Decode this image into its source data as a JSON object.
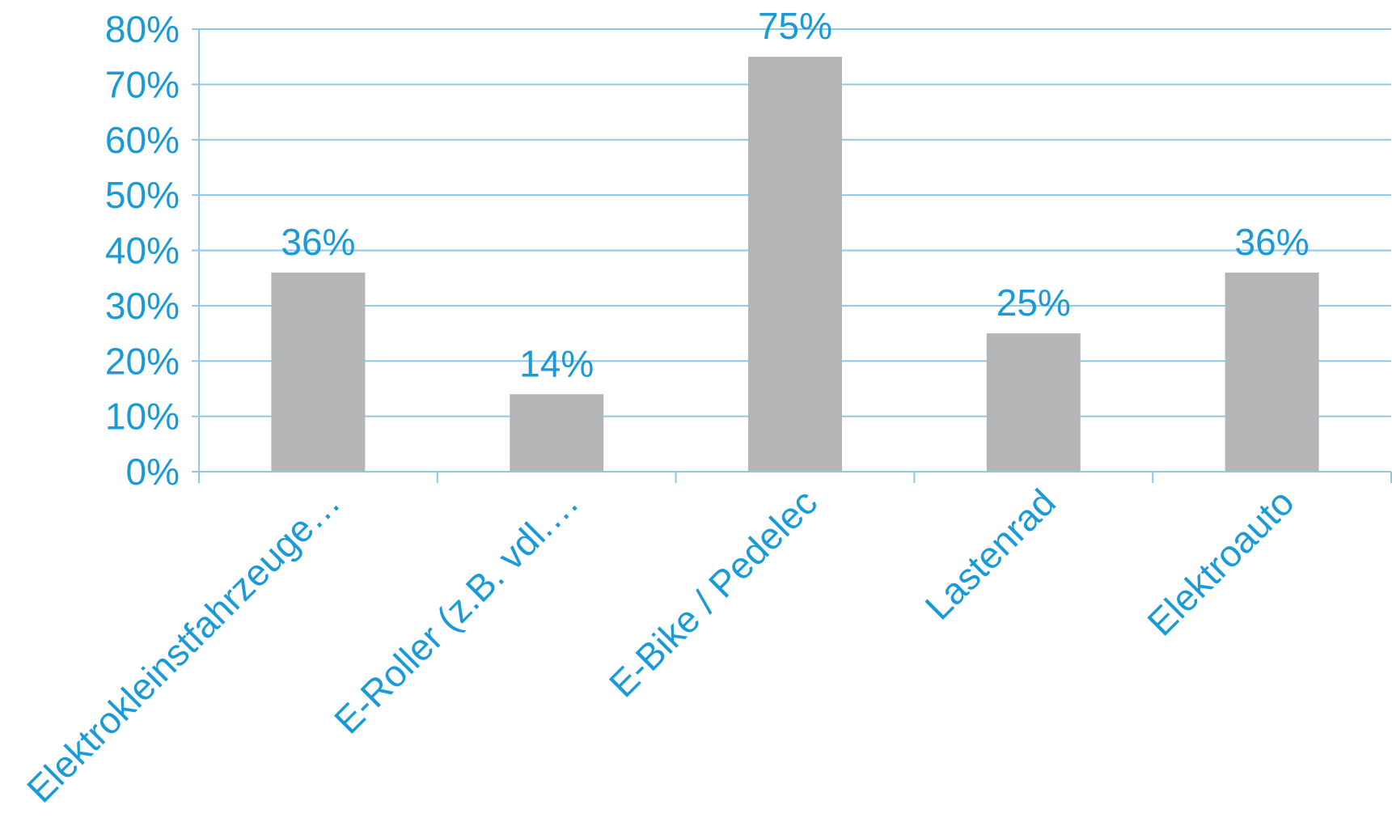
{
  "colors": {
    "text": "#1a9ad6",
    "bar": "#b4b5b7",
    "grid": "#8fc7e6",
    "axis": "#8fc7e6",
    "background": "#ffffff"
  },
  "chart_data": {
    "type": "bar",
    "categories": [
      "Elektrokleinstfahrzeuge…",
      "E-Roller (z.B. vdl.…",
      "E-Bike / Pedelec",
      "Lastenrad",
      "Elektroauto"
    ],
    "values": [
      36,
      14,
      75,
      25,
      36
    ],
    "value_labels": [
      "36%",
      "14%",
      "75%",
      "25%",
      "36%"
    ],
    "title": "",
    "xlabel": "",
    "ylabel": "",
    "ylim": [
      0,
      80
    ],
    "yticks": [
      0,
      10,
      20,
      30,
      40,
      50,
      60,
      70,
      80
    ],
    "ytick_labels": [
      "0%",
      "10%",
      "20%",
      "30%",
      "40%",
      "50%",
      "60%",
      "70%",
      "80%"
    ],
    "grid": true,
    "legend": "none"
  }
}
